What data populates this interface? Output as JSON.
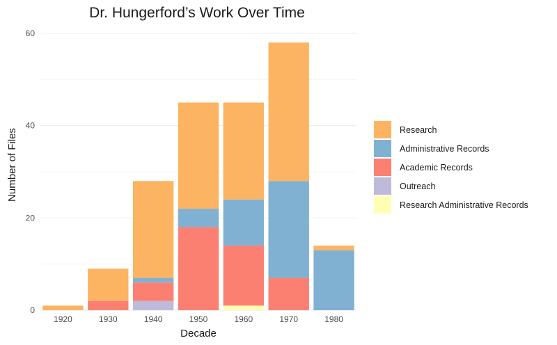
{
  "chart_data": {
    "type": "bar",
    "stacked": true,
    "title": "Dr. Hungerford’s Work Over Time",
    "xlabel": "Decade",
    "ylabel": "Number of Files",
    "categories": [
      "1920",
      "1930",
      "1940",
      "1950",
      "1960",
      "1970",
      "1980"
    ],
    "ylim": [
      0,
      63
    ],
    "yticks": [
      0,
      20,
      40,
      60
    ],
    "grid": true,
    "legend_position": "right",
    "series": [
      {
        "name": "Research Administrative Records",
        "color": "#ffffb3",
        "values": [
          0,
          0,
          0,
          0,
          1,
          0,
          0
        ]
      },
      {
        "name": "Outreach",
        "color": "#bebada",
        "values": [
          0,
          0,
          2,
          0,
          0,
          0,
          0
        ]
      },
      {
        "name": "Academic Records",
        "color": "#fb8072",
        "values": [
          0,
          2,
          4,
          18,
          13,
          7,
          0
        ]
      },
      {
        "name": "Administrative Records",
        "color": "#80b1d3",
        "values": [
          0,
          0,
          1,
          4,
          10,
          21,
          13
        ]
      },
      {
        "name": "Research",
        "color": "#fdb462",
        "values": [
          1,
          7,
          21,
          23,
          21,
          30,
          1
        ]
      }
    ],
    "legend_order": [
      "Research",
      "Administrative Records",
      "Academic Records",
      "Outreach",
      "Research Administrative Records"
    ]
  }
}
